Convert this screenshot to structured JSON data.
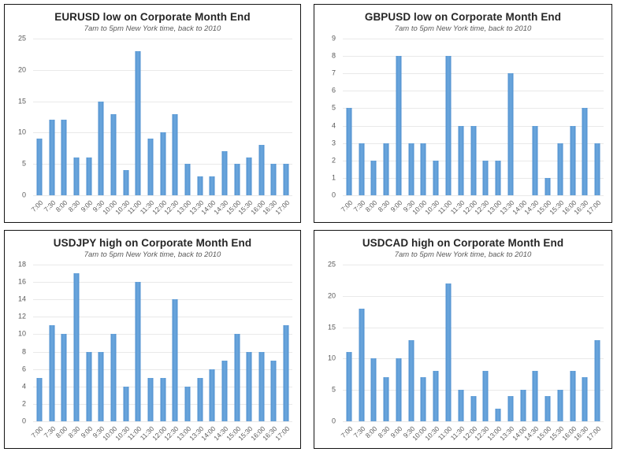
{
  "colors": {
    "bar": "#5b9bd5",
    "gridline": "#e9e9e9",
    "tick": "#595959",
    "title": "#262626",
    "subtitle": "#595959",
    "panel_border": "#141414",
    "background": "#ffffff"
  },
  "chart_data": [
    {
      "type": "bar",
      "title": "EURUSD low on Corporate Month End",
      "subtitle": "7am to 5pm New York time, back to 2010",
      "categories": [
        "7:00",
        "7:30",
        "8:00",
        "8:30",
        "9:00",
        "9:30",
        "10:00",
        "10:30",
        "11:00",
        "11:30",
        "12:00",
        "12:30",
        "13:00",
        "13:30",
        "14:00",
        "14:30",
        "15:00",
        "15:30",
        "16:00",
        "16:30",
        "17:00"
      ],
      "values": [
        9,
        12,
        12,
        6,
        6,
        15,
        13,
        4,
        23,
        9,
        10,
        13,
        5,
        3,
        3,
        7,
        5,
        6,
        8,
        5,
        5
      ],
      "xlabel": "",
      "ylabel": "",
      "ylim": [
        0,
        25
      ],
      "ytick_step": 5,
      "grid": "horizontal",
      "legend": false
    },
    {
      "type": "bar",
      "title": "GBPUSD low on Corporate Month End",
      "subtitle": "7am to 5pm New York time, back to 2010",
      "categories": [
        "7:00",
        "7:30",
        "8:00",
        "8:30",
        "9:00",
        "9:30",
        "10:00",
        "10:30",
        "11:00",
        "11:30",
        "12:00",
        "12:30",
        "13:00",
        "13:30",
        "14:00",
        "14:30",
        "15:00",
        "15:30",
        "16:00",
        "16:30",
        "17:00"
      ],
      "values": [
        5,
        3,
        2,
        3,
        8,
        3,
        3,
        2,
        8,
        4,
        4,
        2,
        2,
        7,
        0,
        4,
        1,
        3,
        4,
        5,
        3
      ],
      "xlabel": "",
      "ylabel": "",
      "ylim": [
        0,
        9
      ],
      "ytick_step": 1,
      "grid": "horizontal",
      "legend": false
    },
    {
      "type": "bar",
      "title": "USDJPY high on Corporate Month End",
      "subtitle": "7am to 5pm New York time, back to 2010",
      "categories": [
        "7:00",
        "7:30",
        "8:00",
        "8:30",
        "9:00",
        "9:30",
        "10:00",
        "10:30",
        "11:00",
        "11:30",
        "12:00",
        "12:30",
        "13:00",
        "13:30",
        "14:00",
        "14:30",
        "15:00",
        "15:30",
        "16:00",
        "16:30",
        "17:00"
      ],
      "values": [
        5,
        11,
        10,
        17,
        8,
        8,
        10,
        4,
        16,
        5,
        5,
        14,
        4,
        5,
        6,
        7,
        10,
        8,
        8,
        7,
        11
      ],
      "xlabel": "",
      "ylabel": "",
      "ylim": [
        0,
        18
      ],
      "ytick_step": 2,
      "grid": "horizontal",
      "legend": false
    },
    {
      "type": "bar",
      "title": "USDCAD high on Corporate Month End",
      "subtitle": "7am to 5pm New York time, back to 2010",
      "categories": [
        "7:00",
        "7:30",
        "8:00",
        "8:30",
        "9:00",
        "9:30",
        "10:00",
        "10:30",
        "11:00",
        "11:30",
        "12:00",
        "12:30",
        "13:00",
        "13:30",
        "14:00",
        "14:30",
        "15:00",
        "15:30",
        "16:00",
        "16:30",
        "17:00"
      ],
      "values": [
        11,
        18,
        10,
        7,
        10,
        13,
        7,
        8,
        22,
        5,
        4,
        8,
        2,
        4,
        5,
        8,
        4,
        5,
        8,
        7,
        13
      ],
      "xlabel": "",
      "ylabel": "",
      "ylim": [
        0,
        25
      ],
      "ytick_step": 5,
      "grid": "horizontal",
      "legend": false
    }
  ]
}
